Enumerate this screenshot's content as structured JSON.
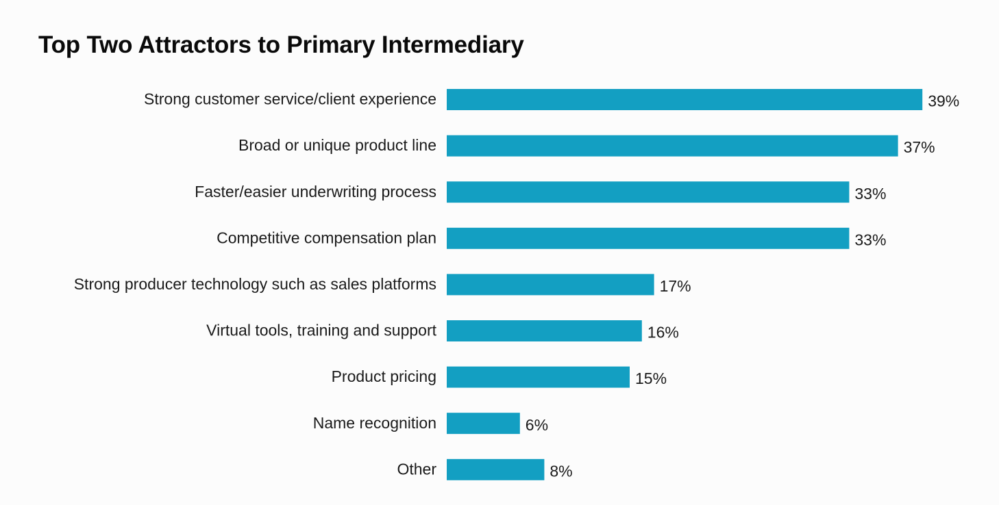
{
  "chart_data": {
    "type": "bar",
    "orientation": "horizontal",
    "title": "Top Two Attractors to Primary Intermediary",
    "categories": [
      "Strong customer service/client experience",
      "Broad or unique product line",
      "Faster/easier underwriting process",
      "Competitive compensation plan",
      "Strong producer technology such as sales platforms",
      "Virtual tools, training and support",
      "Product pricing",
      "Name recognition",
      "Other"
    ],
    "values": [
      39,
      37,
      33,
      33,
      17,
      16,
      15,
      6,
      8
    ],
    "value_labels": [
      "39%",
      "37%",
      "33%",
      "33%",
      "17%",
      "16%",
      "15%",
      "6%",
      "8%"
    ],
    "unit": "%",
    "xlim": [
      0,
      40
    ],
    "grid": false,
    "legend": "none",
    "bar_color": "#139fc2"
  }
}
